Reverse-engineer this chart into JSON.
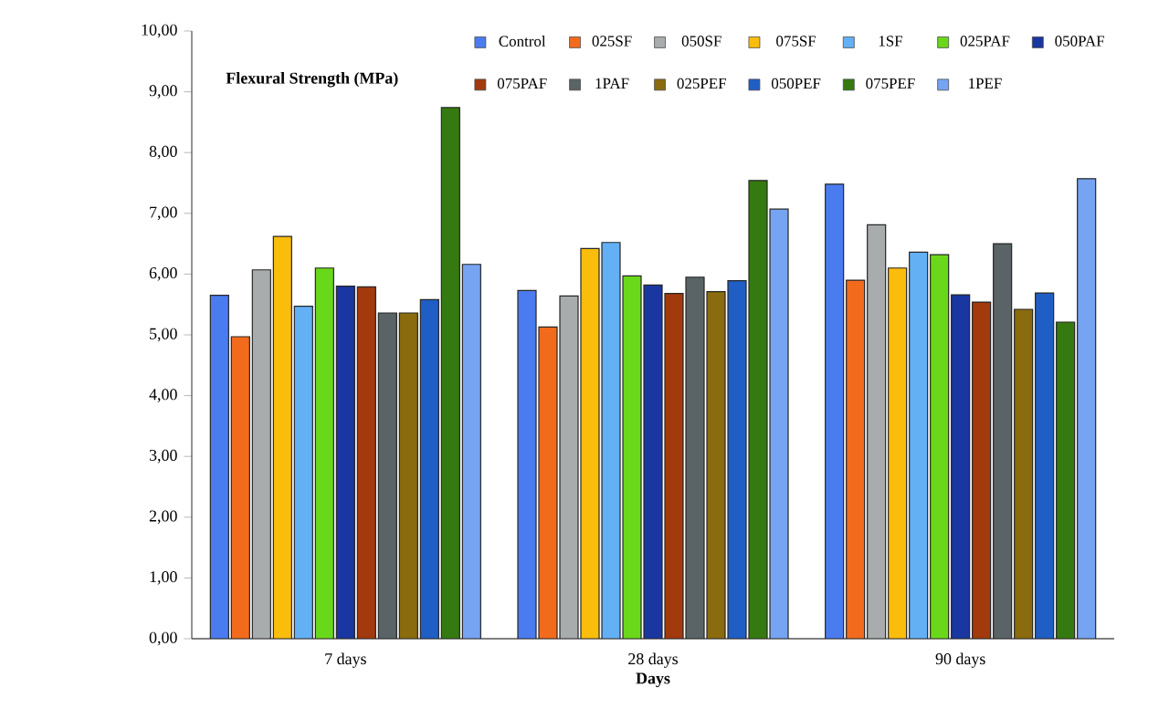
{
  "chart_data": {
    "type": "bar",
    "ylabel": "Flexural Strength (MPa)",
    "xlabel": "Days",
    "categories": [
      "7 days",
      "28 days",
      "90 days"
    ],
    "series": [
      {
        "name": "Control",
        "color": "#4a7cf0",
        "values": [
          5.65,
          5.73,
          7.48
        ]
      },
      {
        "name": "025SF",
        "color": "#f26b1d",
        "values": [
          4.97,
          5.13,
          5.9
        ]
      },
      {
        "name": "050SF",
        "color": "#a8acac",
        "values": [
          6.07,
          5.64,
          6.81
        ]
      },
      {
        "name": "075SF",
        "color": "#fbbd0b",
        "values": [
          6.62,
          6.42,
          6.1
        ]
      },
      {
        "name": "1SF",
        "color": "#63b0f5",
        "values": [
          5.47,
          6.52,
          6.36
        ]
      },
      {
        "name": "025PAF",
        "color": "#6ad81a",
        "values": [
          6.1,
          5.97,
          6.32
        ]
      },
      {
        "name": "050PAF",
        "color": "#1a36a0",
        "values": [
          5.8,
          5.82,
          5.66
        ]
      },
      {
        "name": "075PAF",
        "color": "#a23a0d",
        "values": [
          5.79,
          5.68,
          5.54
        ]
      },
      {
        "name": "1PAF",
        "color": "#5a6366",
        "values": [
          5.36,
          5.95,
          6.5
        ]
      },
      {
        "name": "025PEF",
        "color": "#8a6c0e",
        "values": [
          5.36,
          5.71,
          5.42
        ]
      },
      {
        "name": "050PEF",
        "color": "#1f5ec4",
        "values": [
          5.58,
          5.89,
          5.69
        ]
      },
      {
        "name": "075PEF",
        "color": "#357a10",
        "values": [
          8.74,
          7.54,
          5.21
        ]
      },
      {
        "name": "1PEF",
        "color": "#76a4f2",
        "values": [
          6.16,
          7.07,
          7.57
        ]
      }
    ],
    "ylim": [
      0,
      10
    ],
    "yticks": [
      {
        "value": 0,
        "label": "0,00"
      },
      {
        "value": 1,
        "label": "1,00"
      },
      {
        "value": 2,
        "label": "2,00"
      },
      {
        "value": 3,
        "label": "3,00"
      },
      {
        "value": 4,
        "label": "4,00"
      },
      {
        "value": 5,
        "label": "5,00"
      },
      {
        "value": 6,
        "label": "6,00"
      },
      {
        "value": 7,
        "label": "7,00"
      },
      {
        "value": 8,
        "label": "8,00"
      },
      {
        "value": 9,
        "label": "9,00"
      },
      {
        "value": 10,
        "label": "10,00"
      }
    ],
    "grid": false,
    "legend": "top right"
  }
}
